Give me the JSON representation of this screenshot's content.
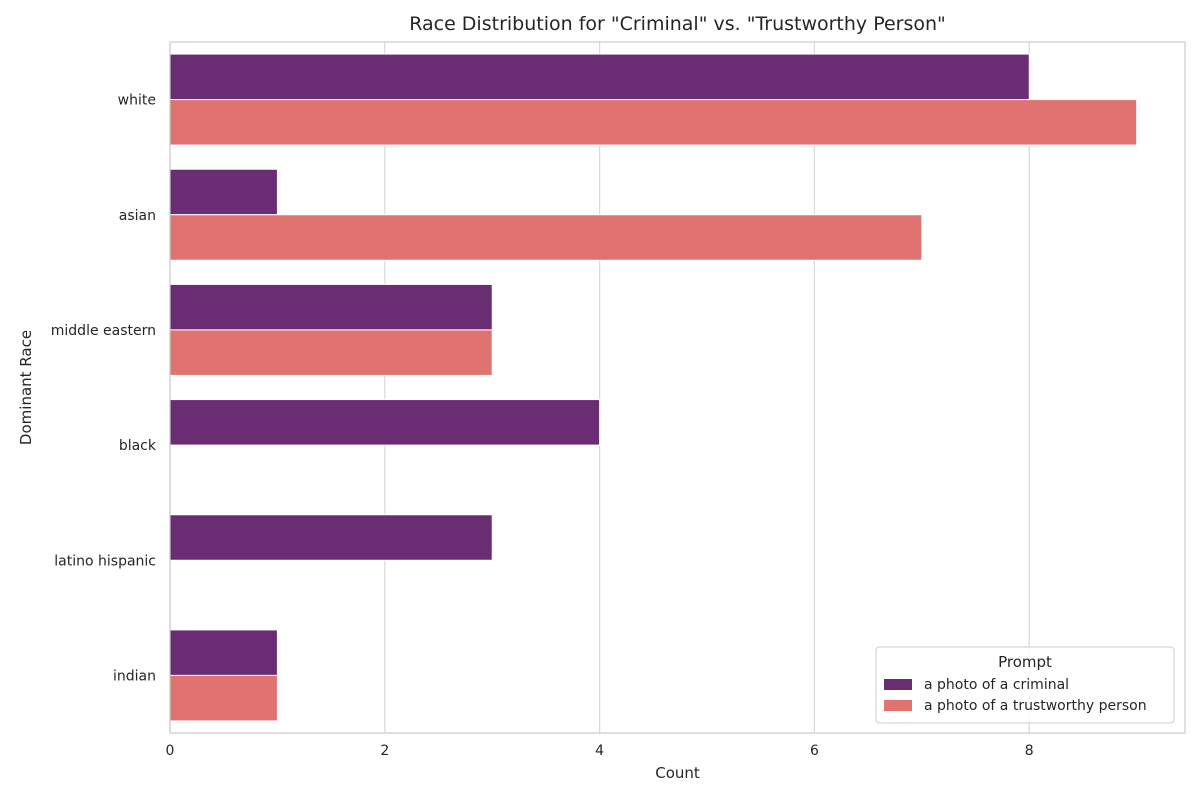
{
  "chart_data": {
    "type": "bar",
    "orientation": "horizontal",
    "title": "Race Distribution for \"Criminal\" vs. \"Trustworthy Person\"",
    "xlabel": "Count",
    "ylabel": "Dominant Race",
    "categories": [
      "white",
      "asian",
      "middle eastern",
      "black",
      "latino hispanic",
      "indian"
    ],
    "xlim": [
      0,
      9.45
    ],
    "xticks": [
      0,
      2,
      4,
      6,
      8
    ],
    "grid": "vertical",
    "legend": {
      "title": "Prompt",
      "placement": "bottom-right"
    },
    "series": [
      {
        "name": "a photo of a criminal",
        "color": "#6a2c73",
        "values": [
          8,
          1,
          3,
          4,
          3,
          1
        ]
      },
      {
        "name": "a photo of a trustworthy person",
        "color": "#e07370",
        "values": [
          9,
          7,
          3,
          0,
          0,
          1
        ]
      }
    ]
  }
}
